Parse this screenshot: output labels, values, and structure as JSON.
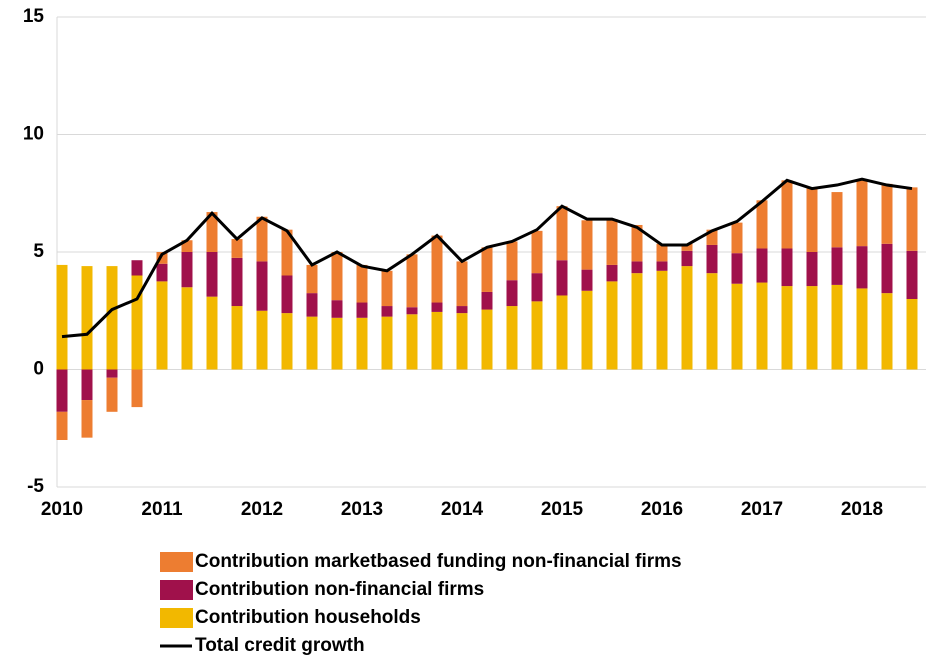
{
  "chart_data": {
    "type": "stacked_bar_line",
    "categories": [
      "2010",
      null,
      null,
      null,
      "2011",
      null,
      null,
      null,
      "2012",
      null,
      null,
      null,
      "2013",
      null,
      null,
      null,
      "2014",
      null,
      null,
      null,
      "2015",
      null,
      null,
      null,
      "2016",
      null,
      null,
      null,
      "2017",
      null,
      null,
      null,
      "2018",
      null,
      null
    ],
    "series": [
      {
        "name": "Contribution marketbased funding non-financial firms",
        "color": "#ED7D31",
        "kind": "bar",
        "values": [
          -1.2,
          -1.6,
          -1.45,
          -1.6,
          0.5,
          0.5,
          1.7,
          0.8,
          1.9,
          1.95,
          1.2,
          2.05,
          1.6,
          1.5,
          2.25,
          2.85,
          1.9,
          1.9,
          1.65,
          1.8,
          2.3,
          2.1,
          1.95,
          1.55,
          0.75,
          0.3,
          0.65,
          1.3,
          2.05,
          2.9,
          2.7,
          2.35,
          2.85,
          2.55,
          2.7
        ]
      },
      {
        "name": "Contribution non-financial firms",
        "color": "#A0114B",
        "kind": "bar",
        "values": [
          -1.8,
          -1.3,
          -0.35,
          0.65,
          0.75,
          1.5,
          1.9,
          2.05,
          2.1,
          1.6,
          1.0,
          0.75,
          0.65,
          0.45,
          0.3,
          0.4,
          0.3,
          0.75,
          1.1,
          1.2,
          1.5,
          0.9,
          0.7,
          0.5,
          0.4,
          0.65,
          1.2,
          1.3,
          1.45,
          1.6,
          1.45,
          1.6,
          1.8,
          2.1,
          2.05
        ]
      },
      {
        "name": "Contribution households",
        "color": "#F2B800",
        "kind": "bar",
        "values": [
          4.45,
          4.4,
          4.4,
          4.0,
          3.75,
          3.5,
          3.1,
          2.7,
          2.5,
          2.4,
          2.25,
          2.2,
          2.2,
          2.25,
          2.35,
          2.45,
          2.4,
          2.55,
          2.7,
          2.9,
          3.15,
          3.35,
          3.75,
          4.1,
          4.2,
          4.4,
          4.1,
          3.65,
          3.7,
          3.55,
          3.55,
          3.6,
          3.45,
          3.25,
          3.0
        ]
      },
      {
        "name": "Total credit growth",
        "color": "#000000",
        "kind": "line",
        "values": [
          1.4,
          1.5,
          2.55,
          3.0,
          4.9,
          5.5,
          6.65,
          5.55,
          6.45,
          5.9,
          4.45,
          5.0,
          4.4,
          4.2,
          4.9,
          5.7,
          4.6,
          5.2,
          5.45,
          5.95,
          6.95,
          6.4,
          6.4,
          6.05,
          5.3,
          5.3,
          5.9,
          6.3,
          7.15,
          8.05,
          7.7,
          7.85,
          8.1,
          7.85,
          7.7
        ]
      }
    ],
    "ylim": [
      -5,
      15
    ],
    "yticks": [
      -5,
      0,
      5,
      10,
      15
    ],
    "grid": true
  }
}
